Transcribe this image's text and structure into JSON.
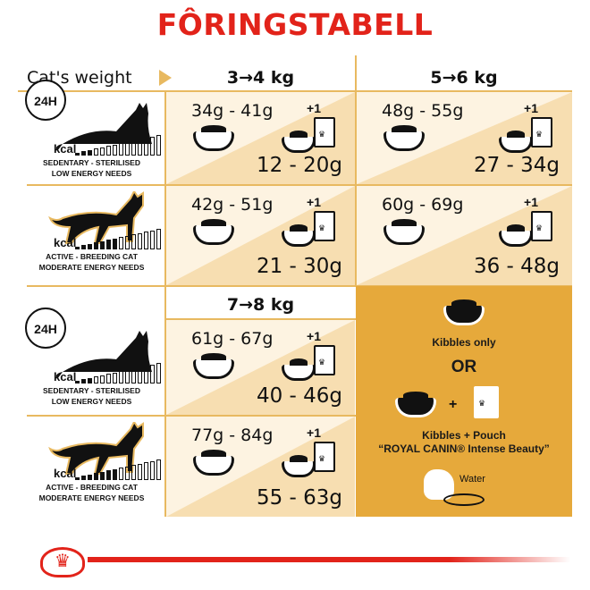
{
  "title": "FÔRINGSTABELL",
  "header": {
    "weight_label": "Cat's weight",
    "col1": "3→4 kg",
    "col2": "5→6 kg",
    "col3": "7→8 kg"
  },
  "profiles": [
    {
      "type": "sedentary",
      "kcal": "kcal",
      "line1": "SEDENTARY - STERILISED",
      "line2": "LOW ENERGY NEEDS",
      "clock": "24H"
    },
    {
      "type": "active",
      "kcal": "kcal",
      "line1": "ACTIVE - BREEDING CAT",
      "line2": "MODERATE ENERGY NEEDS"
    }
  ],
  "cells": {
    "w34_sed": {
      "dry": "34g - 41g",
      "plus": "+1",
      "wet": "12 - 20g"
    },
    "w56_sed": {
      "dry": "48g - 55g",
      "plus": "+1",
      "wet": "27 - 34g"
    },
    "w34_act": {
      "dry": "42g - 51g",
      "plus": "+1",
      "wet": "21 - 30g"
    },
    "w56_act": {
      "dry": "60g - 69g",
      "plus": "+1",
      "wet": "36 - 48g"
    },
    "w78_sed": {
      "dry": "61g - 67g",
      "plus": "+1",
      "wet": "40 - 46g"
    },
    "w78_act": {
      "dry": "77g - 84g",
      "plus": "+1",
      "wet": "55 - 63g"
    }
  },
  "legend": {
    "kibbles_only": "Kibbles only",
    "or": "OR",
    "plus": "+",
    "kibbles_pouch": "Kibbles + Pouch",
    "product": "“ROYAL CANIN® Intense Beauty”",
    "water": "Water"
  },
  "colors": {
    "title": "#e2231a",
    "line": "#e8b960",
    "cell": "#fdf3e1",
    "triangle": "#f7deb1",
    "panel": "#e6a93b"
  }
}
